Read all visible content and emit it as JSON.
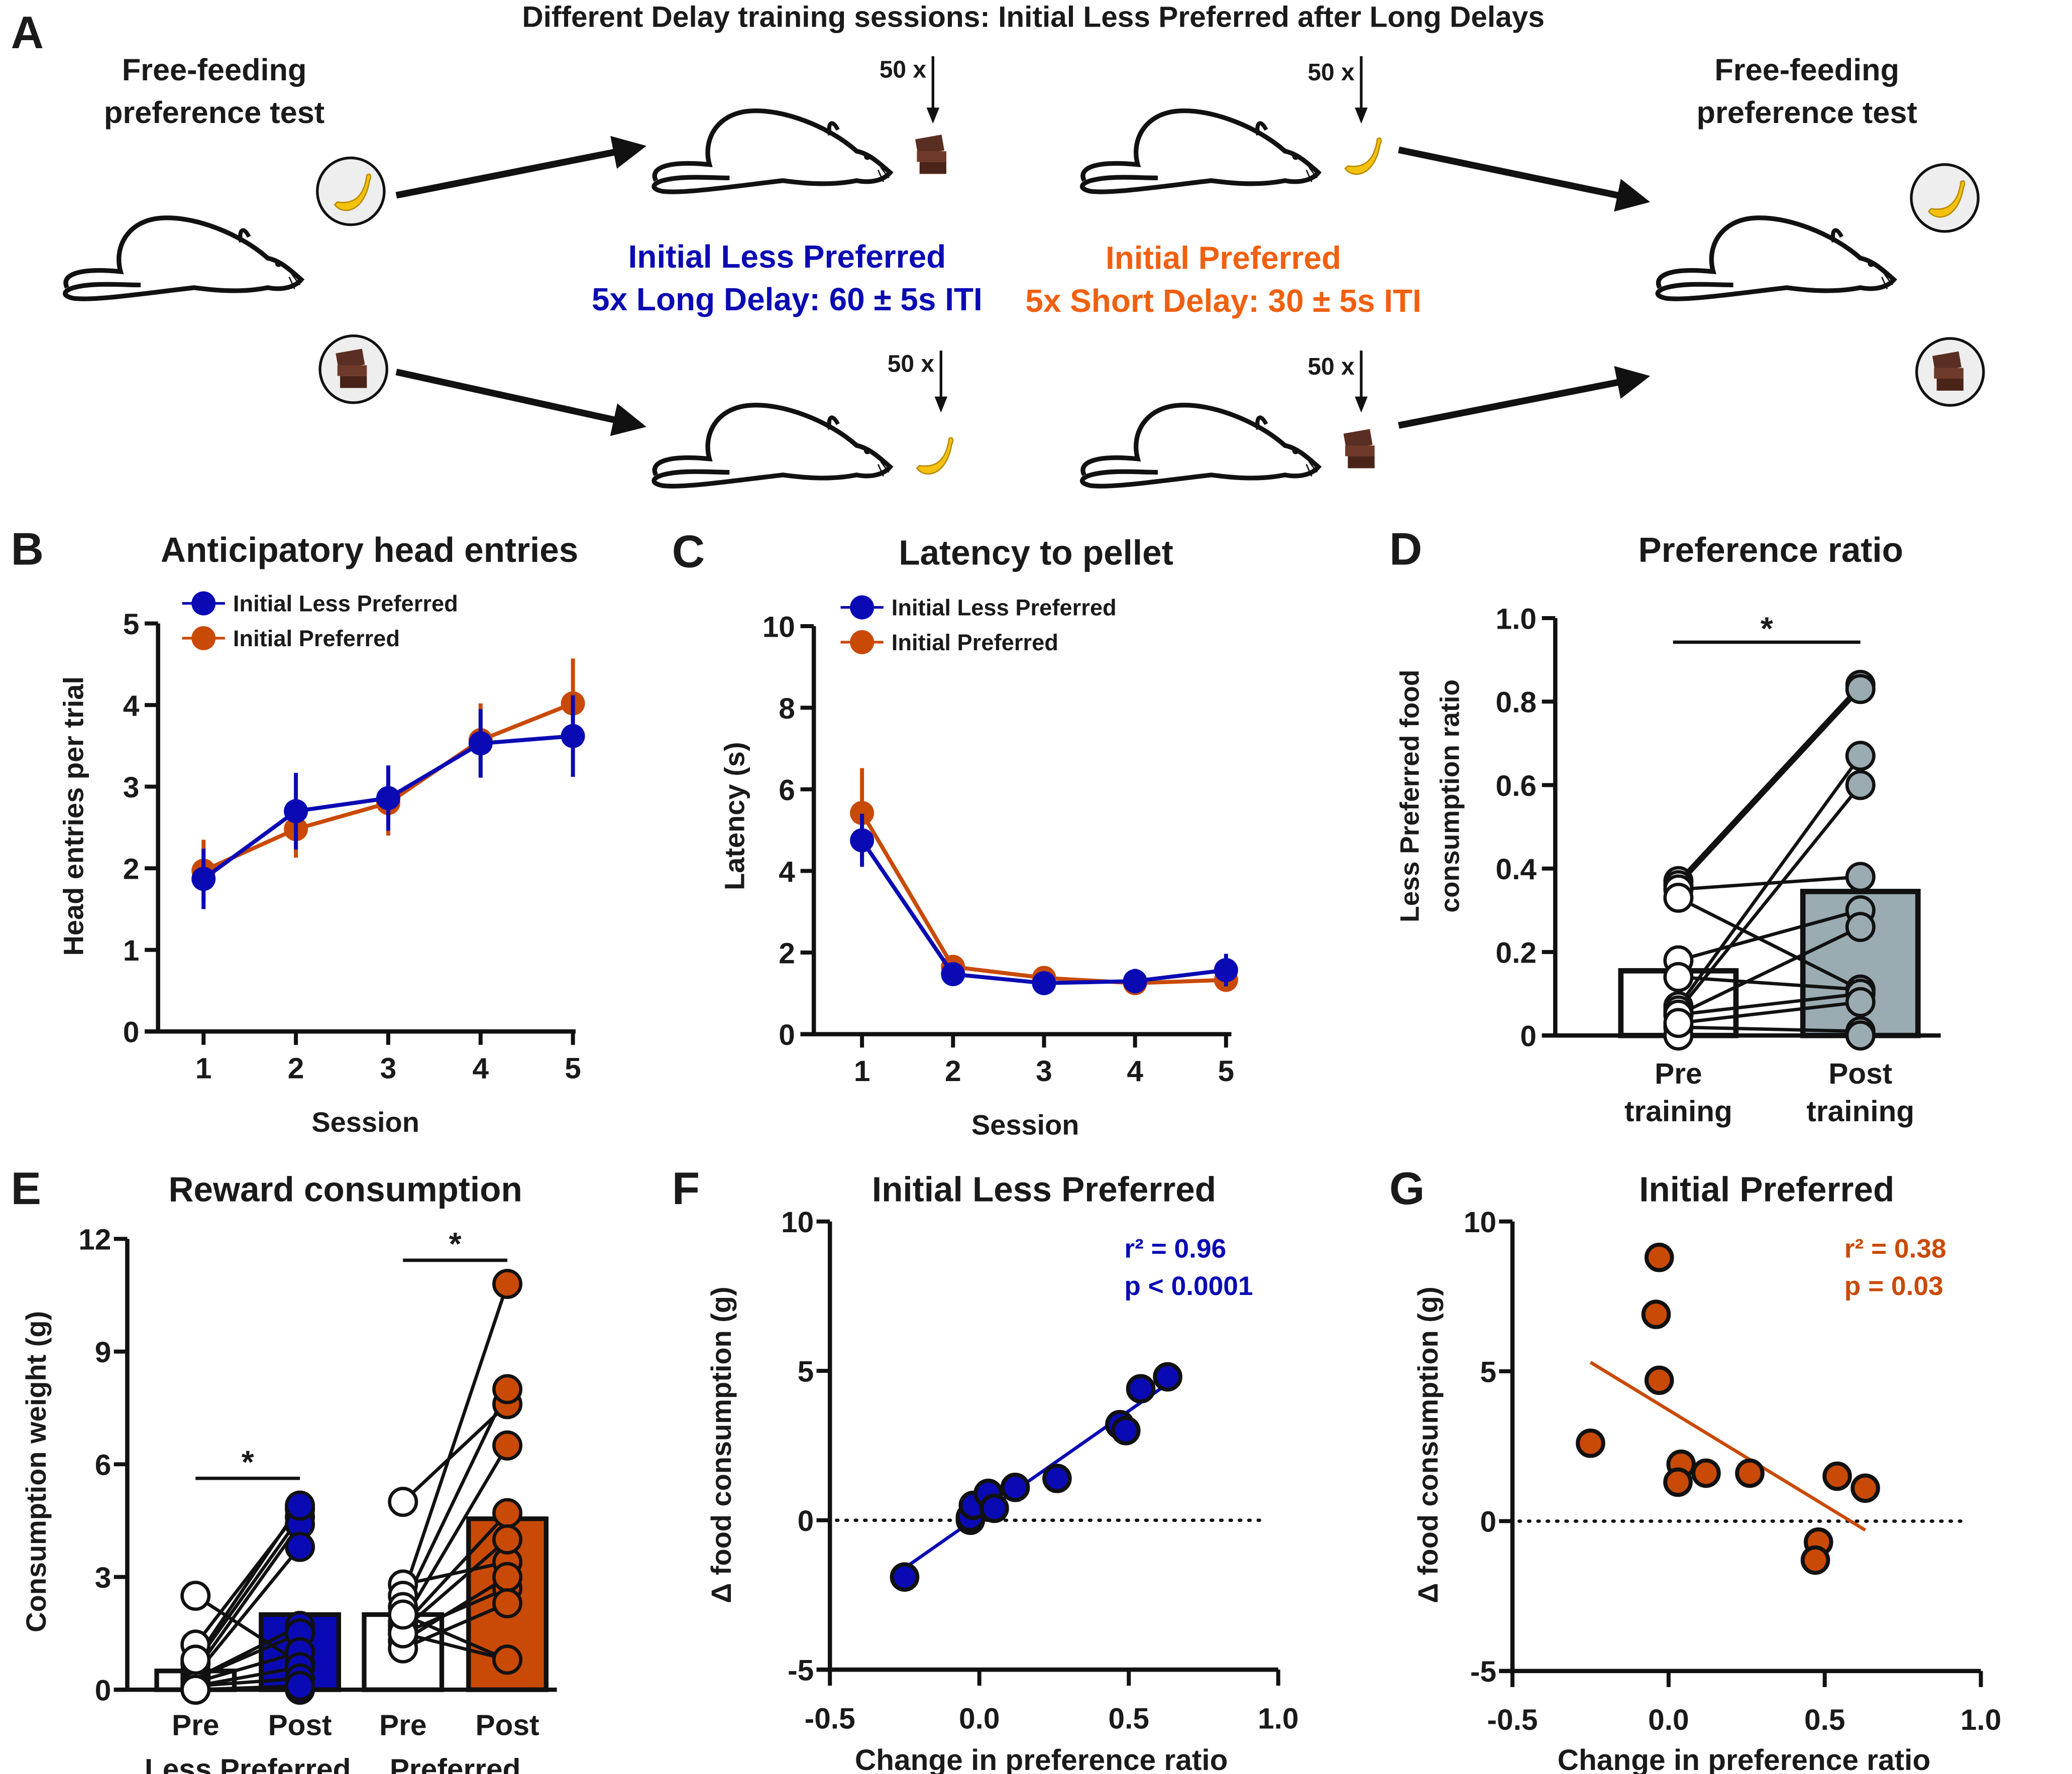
{
  "colors": {
    "blue": "#0a0ab4",
    "orange": "#c94a06",
    "orange_text": "#f06010",
    "grey": "#9aabb2",
    "black": "#111111"
  },
  "panelA": {
    "letter": "A",
    "title": "Different Delay training sessions: Initial Less Preferred after Long Delays",
    "free_feeding_left": [
      "Free-feeding",
      "preference test"
    ],
    "free_feeding_right": [
      "Free-feeding",
      "preference test"
    ],
    "times_label": "50 x",
    "blue_label_1": "Initial Less Preferred",
    "blue_label_2": "5x Long Delay: 60 ± 5s ITI",
    "orange_label_1": "Initial Preferred",
    "orange_label_2": "5x  Short Delay: 30 ± 5s ITI",
    "icons": [
      "mouse-icon",
      "banana-icon",
      "chocolate-icon",
      "arrow-icon"
    ]
  },
  "chart_data": [
    {
      "id": "B",
      "letter": "B",
      "type": "line",
      "title": "Anticipatory head entries",
      "xlabel": "Session",
      "ylabel": "Head entries per trial",
      "x": [
        1,
        2,
        3,
        4,
        5
      ],
      "ylim": [
        0,
        5
      ],
      "yticks": [
        0,
        1,
        2,
        3,
        4,
        5
      ],
      "legend": "top-left",
      "series": [
        {
          "name": "Initial Preferred",
          "color": "orange",
          "values": [
            1.97,
            2.48,
            2.8,
            3.57,
            4.02
          ],
          "sem": [
            0.38,
            0.35,
            0.4,
            0.45,
            0.55
          ]
        },
        {
          "name": "Initial Less Preferred",
          "color": "blue",
          "values": [
            1.87,
            2.7,
            2.86,
            3.53,
            3.62
          ],
          "sem": [
            0.37,
            0.47,
            0.4,
            0.42,
            0.5
          ]
        }
      ]
    },
    {
      "id": "C",
      "letter": "C",
      "type": "line",
      "title": "Latency to pellet",
      "xlabel": "Session",
      "ylabel": "Latency (s)",
      "x": [
        1,
        2,
        3,
        4,
        5
      ],
      "ylim": [
        0,
        10
      ],
      "yticks": [
        0,
        2,
        4,
        6,
        8,
        10
      ],
      "legend": "top-left",
      "series": [
        {
          "name": "Initial Preferred",
          "color": "orange",
          "values": [
            5.42,
            1.65,
            1.38,
            1.25,
            1.33
          ],
          "sem": [
            1.1,
            0.15,
            0.1,
            0.1,
            0.12
          ]
        },
        {
          "name": "Initial Less Preferred",
          "color": "blue",
          "values": [
            4.75,
            1.47,
            1.25,
            1.3,
            1.57
          ],
          "sem": [
            0.65,
            0.15,
            0.12,
            0.3,
            0.4
          ]
        }
      ]
    },
    {
      "id": "D",
      "letter": "D",
      "type": "bar",
      "title": "Preference ratio",
      "ylabel": [
        "Less Preferred food",
        "consumption ratio"
      ],
      "categories": [
        [
          "Pre",
          "training"
        ],
        [
          "Post",
          "training"
        ]
      ],
      "ylim": [
        0,
        1.0
      ],
      "yticks": [
        "0",
        "0.2",
        "0.4",
        "0.6",
        "0.8",
        "1.0"
      ],
      "values": [
        0.155,
        0.345
      ],
      "bar_fills": [
        "#ffffff",
        "grey"
      ],
      "point_fills": [
        "#ffffff",
        "grey"
      ],
      "pairs": [
        [
          0.37,
          0.84
        ],
        [
          0.36,
          0.83
        ],
        [
          0.35,
          0.38
        ],
        [
          0.33,
          0.11
        ],
        [
          0.18,
          0.3
        ],
        [
          0.14,
          0.11
        ],
        [
          0.07,
          0.67
        ],
        [
          0.06,
          0.6
        ],
        [
          0.05,
          0.26
        ],
        [
          0.05,
          0.1
        ],
        [
          0.02,
          0.01
        ],
        [
          0.0,
          0.0
        ],
        [
          0.03,
          0.08
        ]
      ],
      "significance": "*"
    },
    {
      "id": "E",
      "letter": "E",
      "type": "bar",
      "title": "Reward consumption",
      "ylabel": "Consumption weight (g)",
      "ylim": [
        0,
        12
      ],
      "yticks": [
        "0",
        "3",
        "6",
        "9",
        "12"
      ],
      "groups": [
        {
          "name": "Less Preferred",
          "categories": [
            "Pre",
            "Post"
          ],
          "values": [
            0.5,
            2.0
          ],
          "post_color": "blue",
          "pairs": [
            [
              2.5,
              0.7
            ],
            [
              1.2,
              4.8
            ],
            [
              0.7,
              4.6
            ],
            [
              0.5,
              4.4
            ],
            [
              0.4,
              3.8
            ],
            [
              0.3,
              1.7
            ],
            [
              0.3,
              1.5
            ],
            [
              0.2,
              1.0
            ],
            [
              0.1,
              0.6
            ],
            [
              0.1,
              0.3
            ],
            [
              0.0,
              0.0
            ],
            [
              0.0,
              0.1
            ],
            [
              0.8,
              4.9
            ]
          ],
          "significance": "*"
        },
        {
          "name": "Preferred",
          "categories": [
            "Pre",
            "Post"
          ],
          "values": [
            2.0,
            4.55
          ],
          "post_color": "orange",
          "pairs": [
            [
              5.0,
              7.6
            ],
            [
              2.8,
              3.4
            ],
            [
              2.5,
              10.8
            ],
            [
              2.2,
              8.0
            ],
            [
              1.8,
              6.5
            ],
            [
              1.7,
              4.7
            ],
            [
              1.6,
              4.0
            ],
            [
              1.5,
              2.7
            ],
            [
              1.3,
              3.0
            ],
            [
              1.1,
              2.3
            ],
            [
              1.5,
              0.8
            ],
            [
              2.0,
              0.8
            ]
          ],
          "significance": "*"
        }
      ]
    },
    {
      "id": "F",
      "letter": "F",
      "type": "scatter",
      "title": "Initial Less Preferred",
      "xlabel": "Change in preference ratio",
      "ylabel": "Δ food consumption (g)",
      "xlim": [
        -0.5,
        1.0
      ],
      "ylim": [
        -5,
        10
      ],
      "xticks": [
        "-0.5",
        "0.0",
        "0.5",
        "1.0"
      ],
      "yticks": [
        "-5",
        "0",
        "5",
        "10"
      ],
      "color": "blue",
      "points": [
        [
          -0.25,
          -1.9
        ],
        [
          -0.03,
          0.0
        ],
        [
          -0.03,
          0.1
        ],
        [
          -0.02,
          0.5
        ],
        [
          0.03,
          0.9
        ],
        [
          0.05,
          0.4
        ],
        [
          0.12,
          1.1
        ],
        [
          0.26,
          1.4
        ],
        [
          0.47,
          3.2
        ],
        [
          0.49,
          3.0
        ],
        [
          0.54,
          4.4
        ],
        [
          0.63,
          4.8
        ]
      ],
      "fit": [
        [
          -0.25,
          -1.6
        ],
        [
          0.62,
          4.5
        ]
      ],
      "stats": [
        "r² = 0.96",
        "p < 0.0001"
      ]
    },
    {
      "id": "G",
      "letter": "G",
      "type": "scatter",
      "title": "Initial Preferred",
      "xlabel": "Change in preference ratio",
      "ylabel": "Δ food consumption (g)",
      "xlim": [
        -0.5,
        1.0
      ],
      "ylim": [
        -5,
        10
      ],
      "xticks": [
        "-0.5",
        "0.0",
        "0.5",
        "1.0"
      ],
      "yticks": [
        "-5",
        "0",
        "5",
        "10"
      ],
      "color": "orange",
      "points": [
        [
          -0.25,
          2.6
        ],
        [
          -0.03,
          8.8
        ],
        [
          -0.04,
          6.9
        ],
        [
          -0.03,
          4.7
        ],
        [
          0.04,
          1.9
        ],
        [
          0.03,
          1.3
        ],
        [
          0.12,
          1.6
        ],
        [
          0.26,
          1.6
        ],
        [
          0.48,
          -0.7
        ],
        [
          0.47,
          -1.3
        ],
        [
          0.54,
          1.5
        ],
        [
          0.63,
          1.1
        ]
      ],
      "fit": [
        [
          -0.25,
          5.3
        ],
        [
          0.63,
          -0.3
        ]
      ],
      "stats": [
        "r² = 0.38",
        "p = 0.03"
      ]
    }
  ]
}
